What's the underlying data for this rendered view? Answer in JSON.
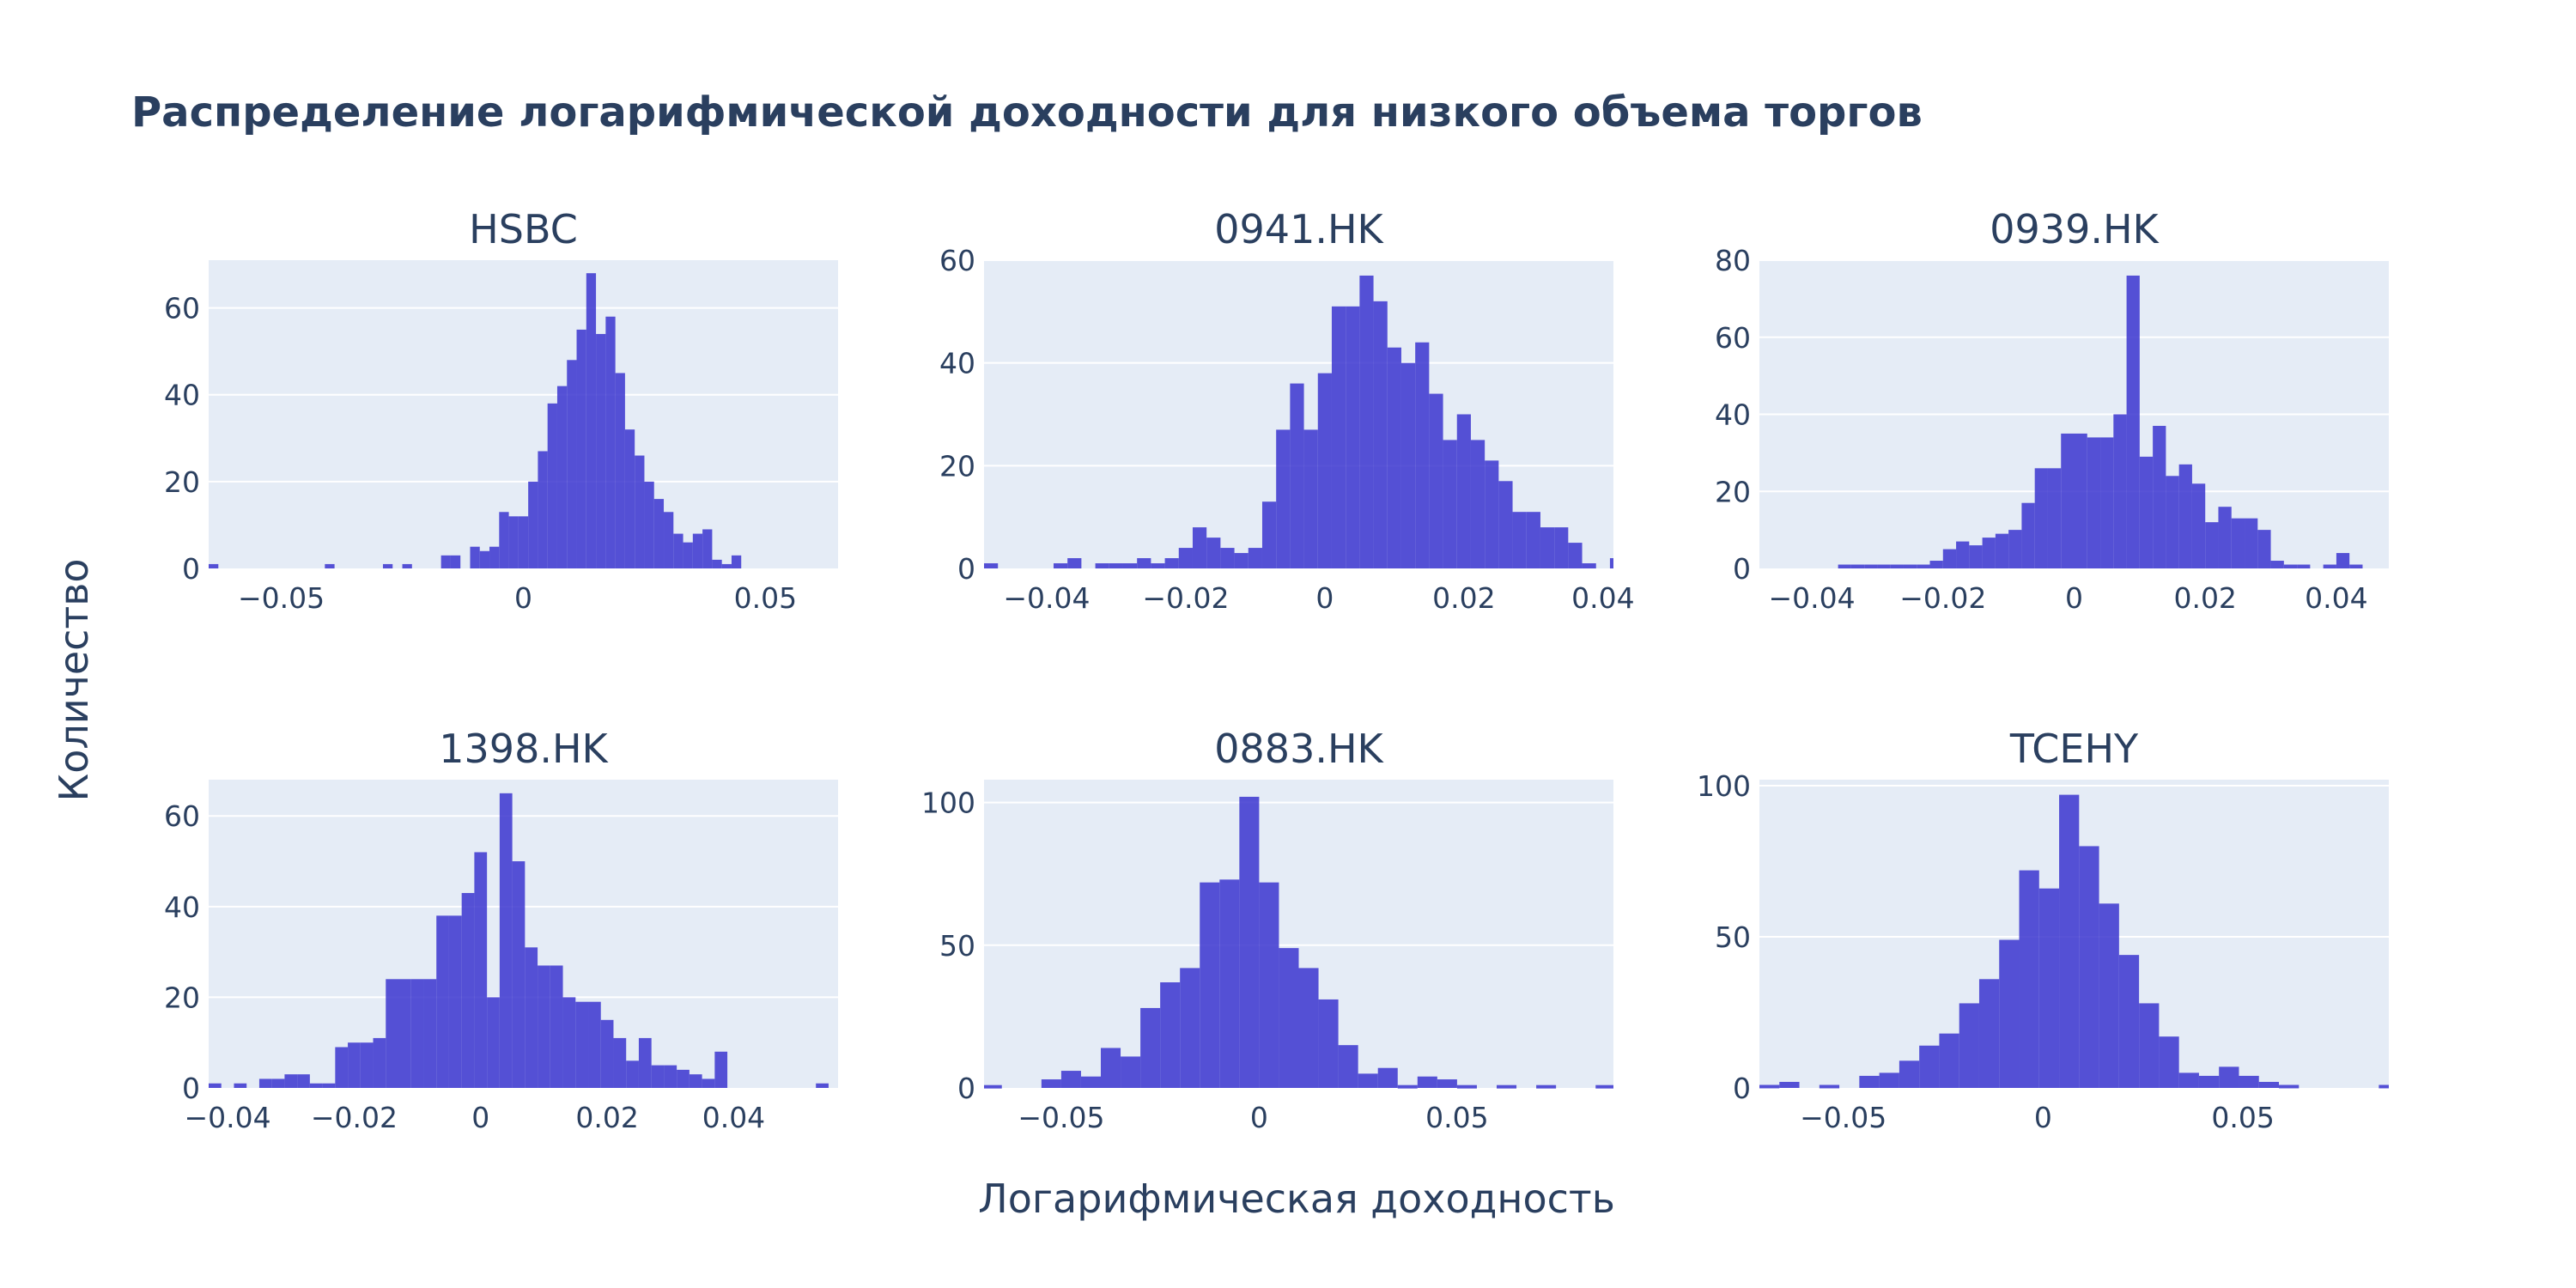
{
  "figure": {
    "title": "Распределение логарифмической доходности для низкого объема торгов",
    "xlabel": "Логарифмическая доходность",
    "ylabel": "Количество",
    "colors": {
      "bar": "#3b35cf",
      "plot_bg": "#e5ecf6",
      "grid": "#ffffff",
      "text": "#2a3f5f"
    }
  },
  "chart_data": [
    {
      "type": "bar",
      "title": "HSBC",
      "xlim": [
        -0.065,
        0.065
      ],
      "ylim": [
        0,
        71
      ],
      "xticks": [
        -0.05,
        0,
        0.05
      ],
      "xtick_labels": [
        "−0.05",
        "0",
        "0.05"
      ],
      "yticks": [
        0,
        20,
        40,
        60
      ],
      "ytick_labels": [
        "0",
        "20",
        "40",
        "60"
      ],
      "bin_start": -0.065,
      "bin_width": 0.002,
      "values": [
        1,
        0,
        0,
        0,
        0,
        0,
        0,
        0,
        0,
        0,
        0,
        0,
        1,
        0,
        0,
        0,
        0,
        0,
        1,
        0,
        1,
        0,
        0,
        0,
        3,
        3,
        0,
        5,
        4,
        5,
        13,
        12,
        12,
        20,
        27,
        38,
        42,
        48,
        55,
        68,
        54,
        58,
        45,
        32,
        26,
        20,
        16,
        13,
        8,
        6,
        8,
        9,
        2,
        1,
        3,
        0,
        0,
        0,
        0,
        0,
        0,
        0,
        0,
        0,
        0,
        1
      ]
    },
    {
      "type": "bar",
      "title": "0941.HK",
      "xlim": [
        -0.049,
        0.0415
      ],
      "ylim": [
        0,
        60
      ],
      "xticks": [
        -0.04,
        -0.02,
        0,
        0.02,
        0.04
      ],
      "xtick_labels": [
        "−0.04",
        "−0.02",
        "0",
        "0.02",
        "0.04"
      ],
      "yticks": [
        0,
        20,
        40,
        60
      ],
      "ytick_labels": [
        "0",
        "20",
        "40",
        "60"
      ],
      "bin_start": -0.049,
      "bin_width": 0.002,
      "values": [
        1,
        0,
        0,
        0,
        0,
        1,
        2,
        0,
        1,
        1,
        1,
        2,
        1,
        2,
        4,
        8,
        6,
        4,
        3,
        4,
        13,
        27,
        36,
        27,
        38,
        51,
        51,
        57,
        52,
        43,
        40,
        44,
        34,
        25,
        30,
        25,
        21,
        17,
        11,
        11,
        8,
        8,
        5,
        1,
        0,
        2,
        0,
        3,
        1,
        2
      ]
    },
    {
      "type": "bar",
      "title": "0939.HK",
      "xlim": [
        -0.048,
        0.048
      ],
      "ylim": [
        0,
        80
      ],
      "xticks": [
        -0.04,
        -0.02,
        0,
        0.02,
        0.04
      ],
      "xtick_labels": [
        "−0.04",
        "−0.02",
        "0",
        "0.02",
        "0.04"
      ],
      "yticks": [
        0,
        20,
        40,
        60,
        80
      ],
      "ytick_labels": [
        "0",
        "20",
        "40",
        "60",
        "80"
      ],
      "bin_start": -0.048,
      "bin_width": 0.002,
      "values": [
        0,
        0,
        0,
        0,
        0,
        0,
        1,
        1,
        1,
        1,
        1,
        1,
        1,
        2,
        5,
        7,
        6,
        8,
        9,
        10,
        17,
        26,
        26,
        35,
        35,
        34,
        34,
        40,
        76,
        29,
        37,
        24,
        27,
        22,
        12,
        16,
        13,
        13,
        10,
        2,
        1,
        1,
        0,
        1,
        4,
        1,
        0,
        0
      ]
    },
    {
      "type": "bar",
      "title": "1398.HK",
      "xlim": [
        -0.043,
        0.0565
      ],
      "ylim": [
        0,
        68
      ],
      "xticks": [
        -0.04,
        -0.02,
        0,
        0.02,
        0.04
      ],
      "xtick_labels": [
        "−0.04",
        "−0.02",
        "0",
        "0.02",
        "0.04"
      ],
      "yticks": [
        0,
        20,
        40,
        60
      ],
      "ytick_labels": [
        "0",
        "20",
        "40",
        "60"
      ],
      "bin_start": -0.043,
      "bin_width": 0.002,
      "values": [
        1,
        0,
        1,
        0,
        2,
        2,
        3,
        3,
        1,
        1,
        9,
        10,
        10,
        11,
        24,
        24,
        24,
        24,
        38,
        38,
        43,
        52,
        20,
        65,
        50,
        31,
        27,
        27,
        20,
        19,
        19,
        15,
        11,
        6,
        11,
        5,
        5,
        4,
        3,
        2,
        8,
        0,
        0,
        0,
        0,
        0,
        0,
        0,
        1,
        0,
        1,
        0
      ]
    },
    {
      "type": "bar",
      "title": "0883.HK",
      "xlim": [
        -0.0695,
        0.0895
      ],
      "ylim": [
        0,
        108
      ],
      "xticks": [
        -0.05,
        0,
        0.05
      ],
      "xtick_labels": [
        "−0.05",
        "0",
        "0.05"
      ],
      "yticks": [
        0,
        50,
        100
      ],
      "ytick_labels": [
        "0",
        "50",
        "100"
      ],
      "bin_start": -0.07,
      "bin_width": 0.005,
      "values": [
        1,
        0,
        0,
        3,
        6,
        4,
        14,
        11,
        28,
        37,
        42,
        72,
        73,
        102,
        72,
        49,
        42,
        31,
        15,
        5,
        7,
        1,
        4,
        3,
        1,
        0,
        1,
        0,
        1,
        0,
        0,
        1
      ]
    },
    {
      "type": "bar",
      "title": "TCEHY",
      "xlim": [
        -0.071,
        0.0865
      ],
      "ylim": [
        0,
        102
      ],
      "xticks": [
        -0.05,
        0,
        0.05
      ],
      "xtick_labels": [
        "−0.05",
        "0",
        "0.05"
      ],
      "yticks": [
        0,
        50,
        100
      ],
      "ytick_labels": [
        "0",
        "50",
        "100"
      ],
      "bin_start": -0.071,
      "bin_width": 0.005,
      "values": [
        1,
        2,
        0,
        1,
        0,
        4,
        5,
        9,
        14,
        18,
        28,
        36,
        49,
        72,
        66,
        97,
        80,
        61,
        44,
        28,
        17,
        5,
        4,
        7,
        4,
        2,
        1,
        0,
        0,
        0,
        0,
        1
      ]
    }
  ]
}
